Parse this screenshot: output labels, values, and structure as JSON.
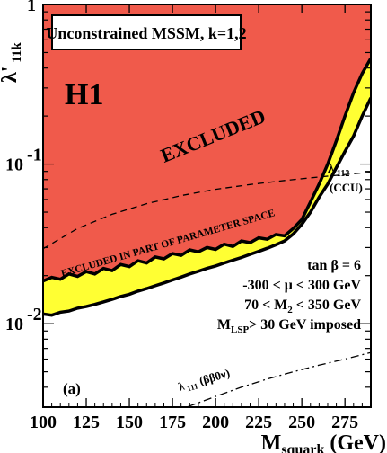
{
  "chart_data": {
    "type": "area",
    "title": "Unconstrained MSSM, k=1,2",
    "panel_label": "(a)",
    "experiment_label": "H1",
    "xlabel": "M",
    "xlabel_sub": "squark",
    "xlabel_unit": "(GeV)",
    "ylabel": "λ'",
    "ylabel_sub": "11k",
    "xlim": [
      100,
      290
    ],
    "ylim": [
      0.003,
      1
    ],
    "y_scale": "log",
    "x_ticks": [
      100,
      125,
      150,
      175,
      200,
      225,
      250,
      275
    ],
    "y_tick_labels": [
      {
        "base": "1",
        "exp": ""
      },
      {
        "base": "10",
        "exp": "-1"
      },
      {
        "base": "10",
        "exp": "-2"
      }
    ],
    "regions": [
      {
        "name": "EXCLUDED",
        "color": "#f05a4b",
        "boundary": [
          [
            100,
            0.0185
          ],
          [
            105,
            0.0195
          ],
          [
            110,
            0.019
          ],
          [
            115,
            0.0205
          ],
          [
            120,
            0.0198
          ],
          [
            125,
            0.0212
          ],
          [
            130,
            0.0205
          ],
          [
            135,
            0.0222
          ],
          [
            140,
            0.0215
          ],
          [
            145,
            0.0235
          ],
          [
            150,
            0.0228
          ],
          [
            155,
            0.0248
          ],
          [
            160,
            0.024
          ],
          [
            165,
            0.0262
          ],
          [
            170,
            0.0255
          ],
          [
            175,
            0.0275
          ],
          [
            180,
            0.0268
          ],
          [
            185,
            0.029
          ],
          [
            190,
            0.0282
          ],
          [
            195,
            0.03
          ],
          [
            200,
            0.0292
          ],
          [
            205,
            0.0315
          ],
          [
            210,
            0.0305
          ],
          [
            215,
            0.033
          ],
          [
            220,
            0.0322
          ],
          [
            225,
            0.0345
          ],
          [
            230,
            0.0338
          ],
          [
            235,
            0.0362
          ],
          [
            240,
            0.0355
          ],
          [
            245,
            0.0395
          ],
          [
            250,
            0.045
          ],
          [
            255,
            0.058
          ],
          [
            260,
            0.075
          ],
          [
            265,
            0.1
          ],
          [
            270,
            0.14
          ],
          [
            275,
            0.2
          ],
          [
            280,
            0.28
          ],
          [
            285,
            0.37
          ],
          [
            290,
            0.46
          ]
        ]
      },
      {
        "name": "EXCLUDED IN PART OF PARAMETER SPACE",
        "color": "#ffff33",
        "boundary": [
          [
            100,
            0.0115
          ],
          [
            105,
            0.0113
          ],
          [
            110,
            0.0118
          ],
          [
            115,
            0.012
          ],
          [
            120,
            0.0125
          ],
          [
            125,
            0.0128
          ],
          [
            130,
            0.0132
          ],
          [
            135,
            0.0137
          ],
          [
            140,
            0.0142
          ],
          [
            145,
            0.0148
          ],
          [
            150,
            0.0153
          ],
          [
            155,
            0.016
          ],
          [
            160,
            0.0166
          ],
          [
            165,
            0.0173
          ],
          [
            170,
            0.018
          ],
          [
            175,
            0.0188
          ],
          [
            180,
            0.0196
          ],
          [
            185,
            0.0205
          ],
          [
            190,
            0.0213
          ],
          [
            195,
            0.0222
          ],
          [
            200,
            0.023
          ],
          [
            205,
            0.024
          ],
          [
            210,
            0.025
          ],
          [
            215,
            0.026
          ],
          [
            220,
            0.0272
          ],
          [
            225,
            0.0284
          ],
          [
            230,
            0.0297
          ],
          [
            235,
            0.0312
          ],
          [
            240,
            0.033
          ],
          [
            245,
            0.0365
          ],
          [
            250,
            0.042
          ],
          [
            255,
            0.05
          ],
          [
            260,
            0.062
          ],
          [
            265,
            0.075
          ],
          [
            270,
            0.095
          ],
          [
            275,
            0.12
          ],
          [
            280,
            0.15
          ],
          [
            285,
            0.2
          ],
          [
            290,
            0.26
          ]
        ]
      }
    ],
    "lines": [
      {
        "name": "λ 112 (CCU)",
        "label": "λ",
        "label_sub": "112",
        "label_extra": "(CCU)",
        "style": "dashed",
        "points": [
          [
            100,
            0.0295
          ],
          [
            120,
            0.0395
          ],
          [
            140,
            0.0485
          ],
          [
            160,
            0.0565
          ],
          [
            180,
            0.0635
          ],
          [
            200,
            0.0695
          ],
          [
            220,
            0.0745
          ],
          [
            240,
            0.079
          ],
          [
            260,
            0.083
          ],
          [
            280,
            0.087
          ],
          [
            290,
            0.089
          ]
        ]
      },
      {
        "name": "λ 111 (ββ0ν)",
        "label": "λ",
        "label_sub": "111",
        "label_extra": "(ββ0ν)",
        "style": "dashdot",
        "points": [
          [
            175,
            0.0027
          ],
          [
            185,
            0.00305
          ],
          [
            200,
            0.0035
          ],
          [
            215,
            0.004
          ],
          [
            230,
            0.0045
          ],
          [
            245,
            0.005
          ],
          [
            260,
            0.0055
          ],
          [
            275,
            0.006
          ],
          [
            290,
            0.0066
          ]
        ]
      }
    ],
    "annotations": {
      "excluded": "EXCLUDED",
      "excluded_part": "EXCLUDED IN PART OF PARAMETER SPACE",
      "params": [
        "tan β = 6",
        "-300 < μ < 300 GeV",
        "70 < M",
        "M",
        "> 30 GeV imposed"
      ],
      "param_subs": {
        "m2_sub": "2",
        "m2_tail": " < 350 GeV",
        "mlsp_sub": "LSP"
      }
    }
  }
}
